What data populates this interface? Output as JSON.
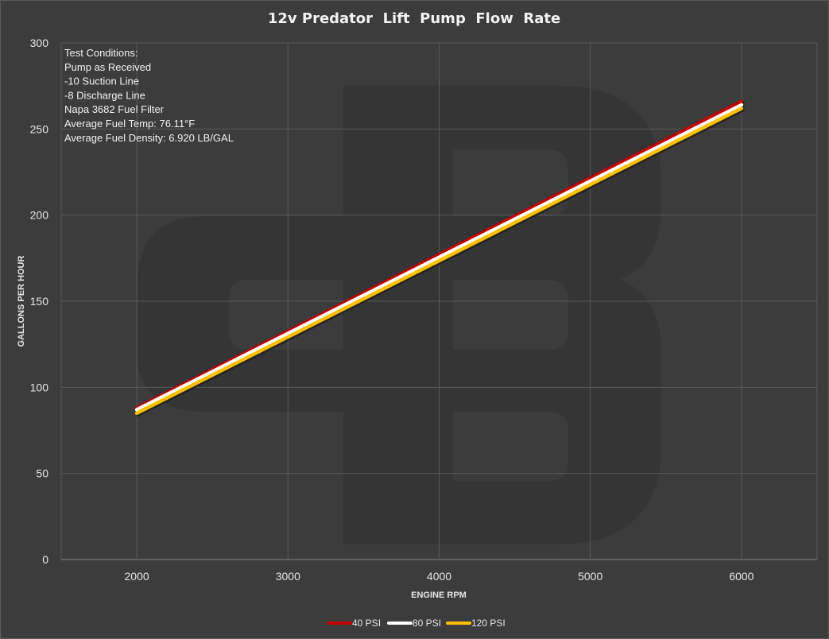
{
  "chart_data": {
    "type": "line",
    "title": "12v Predator  Lift  Pump  Flow  Rate",
    "xlabel": "ENGINE RPM",
    "ylabel": "GALLONS PER HOUR",
    "xlim": [
      1500,
      6500
    ],
    "ylim": [
      0,
      300
    ],
    "xticks": [
      2000,
      3000,
      4000,
      5000,
      6000
    ],
    "yticks": [
      0,
      50,
      100,
      150,
      200,
      250,
      300
    ],
    "grid": true,
    "legend_position": "bottom",
    "x": [
      2000,
      6000
    ],
    "series": [
      {
        "name": "40 PSI",
        "color": "#c00000",
        "values": [
          88,
          266
        ]
      },
      {
        "name": "80 PSI",
        "color": "#ffffff",
        "values": [
          87,
          264
        ]
      },
      {
        "name": "120 PSI",
        "color": "#ffc000",
        "values": [
          85,
          262
        ]
      }
    ],
    "annotation_lines": [
      "Test Conditions:",
      "Pump as Received",
      "-10 Suction Line",
      "-8 Discharge Line",
      "Napa 3682  Fuel Filter",
      "Average Fuel Temp: 76.11°F",
      "Average Fuel Density: 6.920 LB/GAL"
    ]
  }
}
